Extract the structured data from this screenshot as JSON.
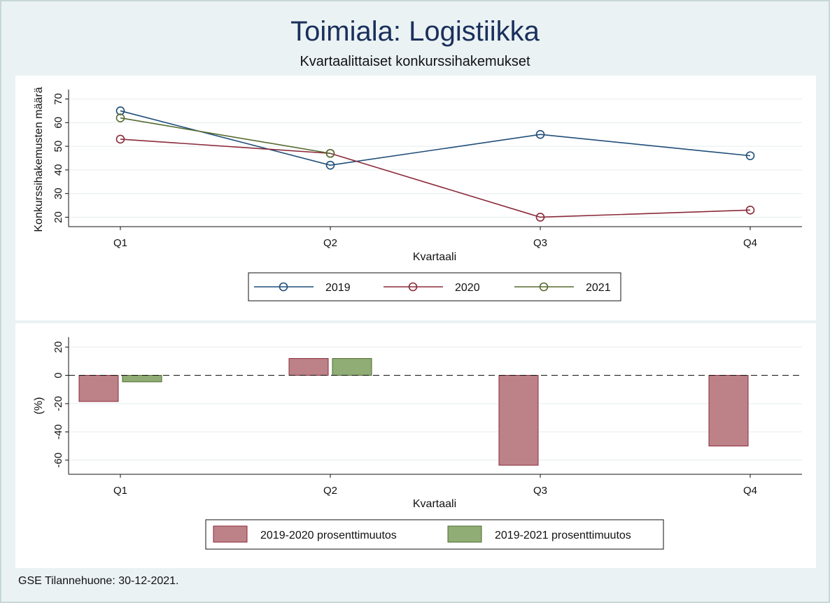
{
  "header": {
    "title": "Toimiala: Logistiikka",
    "subtitle": "Kvartaalittaiset konkurssihakemukset"
  },
  "footer": {
    "source_note": "GSE Tilannehuone: 30-12-2021."
  },
  "colors": {
    "c2019": "#1f4e79",
    "c2020": "#8b2a3a",
    "c2021": "#556b2f",
    "bar2020_fill": "#bc8287",
    "bar2020_stroke": "#8b2a3a",
    "bar2021_fill": "#8fad74",
    "bar2021_stroke": "#4f6b2f"
  },
  "chart_data": [
    {
      "type": "line",
      "categories": [
        "Q1",
        "Q2",
        "Q3",
        "Q4"
      ],
      "series": [
        {
          "name": "2019",
          "values": [
            65,
            42,
            55,
            46
          ]
        },
        {
          "name": "2020",
          "values": [
            53,
            47,
            20,
            23
          ]
        },
        {
          "name": "2021",
          "values": [
            62,
            47,
            null,
            null
          ]
        }
      ],
      "xlabel": "Kvartaali",
      "ylabel": "Konkurssihakemusten määrä",
      "ylim": [
        16,
        74
      ],
      "yticks": [
        20,
        30,
        40,
        50,
        60,
        70
      ],
      "grid": true,
      "legend": "bottom"
    },
    {
      "type": "bar",
      "categories": [
        "Q1",
        "Q2",
        "Q3",
        "Q4"
      ],
      "series": [
        {
          "name": "2019-2020 prosenttimuutos",
          "values": [
            -18.5,
            11.9,
            -63.6,
            -50.0
          ]
        },
        {
          "name": "2019-2021 prosenttimuutos",
          "values": [
            -4.6,
            11.9,
            null,
            null
          ]
        }
      ],
      "xlabel": "Kvartaali",
      "ylabel": "(%)",
      "ylim": [
        -70,
        27
      ],
      "yticks": [
        20,
        0,
        -20,
        -40,
        -60
      ],
      "reference_line": 0,
      "grid": true,
      "legend": "bottom"
    }
  ]
}
